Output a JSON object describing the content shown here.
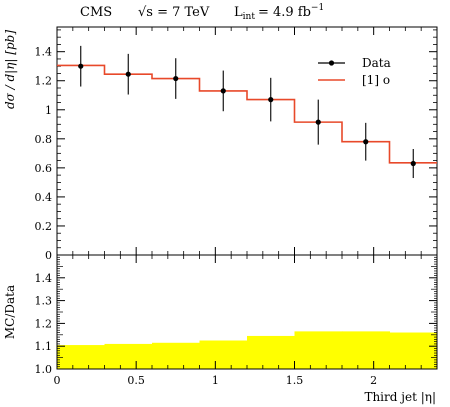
{
  "header": {
    "experiment": "CMS",
    "energy_label": "√s = 7 TeV",
    "lumi_label": "L",
    "lumi_sub": "int",
    "lumi_value": "= 4.9 fb",
    "lumi_sup": "−1"
  },
  "colors": {
    "data": "#000000",
    "mc_line": "#e8492a",
    "ratio_band": "#ffff00"
  },
  "chart_data": [
    {
      "type": "line",
      "panel": "main",
      "ylabel": "dσ / d|η| [pb]",
      "xlim": [
        0,
        2.4
      ],
      "ylim": [
        0,
        1.57
      ],
      "yticks": [
        0,
        0.2,
        0.4,
        0.6,
        0.8,
        1,
        1.2,
        1.4
      ],
      "ytick_labels": [
        "0",
        "0.2",
        "0.4",
        "0.6",
        "0.8",
        "1",
        "1.2",
        "1.4"
      ],
      "bin_edges": [
        0,
        0.3,
        0.6,
        0.9,
        1.2,
        1.5,
        1.8,
        2.1,
        2.4
      ],
      "series": [
        {
          "name": "Data",
          "style": "points-with-errors",
          "x": [
            0.15,
            0.45,
            0.75,
            1.05,
            1.35,
            1.65,
            1.95,
            2.25
          ],
          "y": [
            1.3,
            1.245,
            1.215,
            1.13,
            1.07,
            0.915,
            0.78,
            0.63
          ],
          "yerr": [
            0.14,
            0.14,
            0.14,
            0.14,
            0.15,
            0.155,
            0.13,
            0.1
          ]
        },
        {
          "name": "[1] o",
          "style": "step",
          "values": [
            1.305,
            1.245,
            1.215,
            1.13,
            1.07,
            0.915,
            0.78,
            0.635
          ]
        }
      ],
      "legend": "top-right",
      "grid": false
    },
    {
      "type": "area",
      "panel": "ratio",
      "ylabel": "MC/Data",
      "xlabel": "Third jet |η|",
      "xlim": [
        0,
        2.4
      ],
      "ylim": [
        1.0,
        1.5
      ],
      "xticks": [
        0,
        0.5,
        1,
        1.5,
        2
      ],
      "xtick_labels": [
        "0",
        "0.5",
        "1",
        "1.5",
        "2"
      ],
      "yticks": [
        1.0,
        1.1,
        1.2,
        1.3,
        1.4
      ],
      "ytick_labels": [
        "1.0",
        "1.1",
        "1.2",
        "1.3",
        "1.4"
      ],
      "bin_edges": [
        0,
        0.3,
        0.6,
        0.9,
        1.2,
        1.5,
        1.8,
        2.1,
        2.4
      ],
      "band_low": [
        1.0,
        1.0,
        1.0,
        1.0,
        1.0,
        1.0,
        1.0,
        1.0
      ],
      "band_high": [
        1.105,
        1.11,
        1.115,
        1.125,
        1.145,
        1.165,
        1.165,
        1.16
      ],
      "grid": false
    }
  ]
}
